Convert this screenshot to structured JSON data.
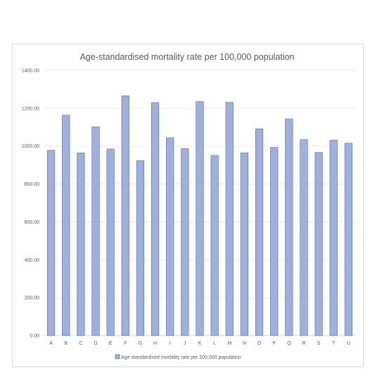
{
  "chart_data": {
    "type": "bar",
    "title": "Age-standardised mortality rate per 100,000 population",
    "xlabel": "",
    "ylabel": "",
    "categories": [
      "A",
      "B",
      "C",
      "D",
      "E",
      "F",
      "G",
      "H",
      "I",
      "J",
      "K",
      "L",
      "M",
      "N",
      "O",
      "P",
      "Q",
      "R",
      "S",
      "T",
      "U"
    ],
    "series": [
      {
        "name": "Age-standardised mortality rate per 100,000 population",
        "values": [
          978,
          1163,
          964,
          1102,
          985,
          1266,
          923,
          1230,
          1044,
          987,
          1236,
          951,
          1231,
          964,
          1091,
          993,
          1144,
          1034,
          967,
          1032,
          1015
        ]
      }
    ],
    "ylim": [
      0,
      1400
    ],
    "yticks": [
      "0.00",
      "200.00",
      "400.00",
      "600.00",
      "800.00",
      "1000.00",
      "1200.00",
      "1400.00"
    ],
    "ytick_values": [
      0,
      200,
      400,
      600,
      800,
      1000,
      1200,
      1400
    ],
    "grid": true,
    "legend_position": "bottom",
    "colors": {
      "bar_fill": "#9fb0dc",
      "bar_stroke": "#4f6aa8",
      "grid": "#e3e3e3",
      "text": "#595959"
    }
  }
}
